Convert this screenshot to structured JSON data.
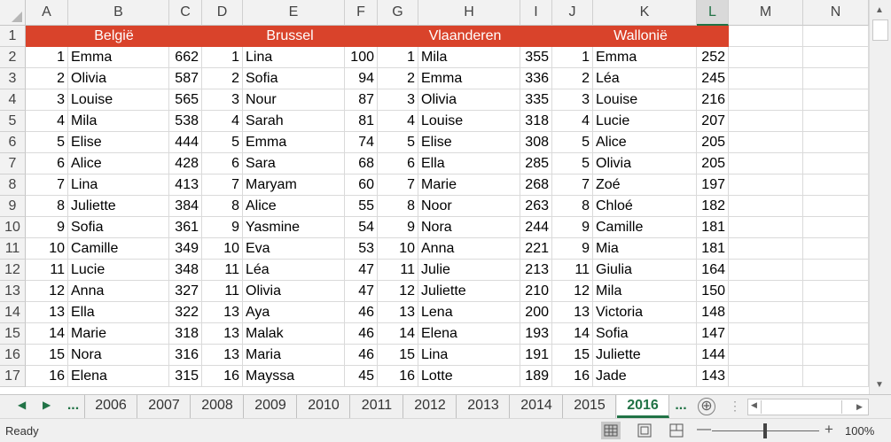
{
  "columns": [
    "A",
    "B",
    "C",
    "D",
    "E",
    "F",
    "G",
    "H",
    "I",
    "J",
    "K",
    "L",
    "M",
    "N"
  ],
  "selected_column": "L",
  "regions": [
    "België",
    "Brussel",
    "Vlaanderen",
    "Wallonië"
  ],
  "row_numbers": [
    "1",
    "2",
    "3",
    "4",
    "5",
    "6",
    "7",
    "8",
    "9",
    "10",
    "11",
    "12",
    "13",
    "14",
    "15",
    "16",
    "17"
  ],
  "rows": [
    [
      "1",
      "Emma",
      "662",
      "1",
      "Lina",
      "100",
      "1",
      "Mila",
      "355",
      "1",
      "Emma",
      "252"
    ],
    [
      "2",
      "Olivia",
      "587",
      "2",
      "Sofia",
      "94",
      "2",
      "Emma",
      "336",
      "2",
      "Léa",
      "245"
    ],
    [
      "3",
      "Louise",
      "565",
      "3",
      "Nour",
      "87",
      "3",
      "Olivia",
      "335",
      "3",
      "Louise",
      "216"
    ],
    [
      "4",
      "Mila",
      "538",
      "4",
      "Sarah",
      "81",
      "4",
      "Louise",
      "318",
      "4",
      "Lucie",
      "207"
    ],
    [
      "5",
      "Elise",
      "444",
      "5",
      "Emma",
      "74",
      "5",
      "Elise",
      "308",
      "5",
      "Alice",
      "205"
    ],
    [
      "6",
      "Alice",
      "428",
      "6",
      "Sara",
      "68",
      "6",
      "Ella",
      "285",
      "5",
      "Olivia",
      "205"
    ],
    [
      "7",
      "Lina",
      "413",
      "7",
      "Maryam",
      "60",
      "7",
      "Marie",
      "268",
      "7",
      "Zoé",
      "197"
    ],
    [
      "8",
      "Juliette",
      "384",
      "8",
      "Alice",
      "55",
      "8",
      "Noor",
      "263",
      "8",
      "Chloé",
      "182"
    ],
    [
      "9",
      "Sofia",
      "361",
      "9",
      "Yasmine",
      "54",
      "9",
      "Nora",
      "244",
      "9",
      "Camille",
      "181"
    ],
    [
      "10",
      "Camille",
      "349",
      "10",
      "Eva",
      "53",
      "10",
      "Anna",
      "221",
      "9",
      "Mia",
      "181"
    ],
    [
      "11",
      "Lucie",
      "348",
      "11",
      "Léa",
      "47",
      "11",
      "Julie",
      "213",
      "11",
      "Giulia",
      "164"
    ],
    [
      "12",
      "Anna",
      "327",
      "11",
      "Olivia",
      "47",
      "12",
      "Juliette",
      "210",
      "12",
      "Mila",
      "150"
    ],
    [
      "13",
      "Ella",
      "322",
      "13",
      "Aya",
      "46",
      "13",
      "Lena",
      "200",
      "13",
      "Victoria",
      "148"
    ],
    [
      "14",
      "Marie",
      "318",
      "13",
      "Malak",
      "46",
      "14",
      "Elena",
      "193",
      "14",
      "Sofia",
      "147"
    ],
    [
      "15",
      "Nora",
      "316",
      "13",
      "Maria",
      "46",
      "15",
      "Lina",
      "191",
      "15",
      "Juliette",
      "144"
    ],
    [
      "16",
      "Elena",
      "315",
      "16",
      "Mayssa",
      "45",
      "16",
      "Lotte",
      "189",
      "16",
      "Jade",
      "143"
    ]
  ],
  "sheet_tabs": [
    "2006",
    "2007",
    "2008",
    "2009",
    "2010",
    "2011",
    "2012",
    "2013",
    "2014",
    "2015",
    "2016"
  ],
  "active_sheet": "2016",
  "overflow_tabs": "...",
  "add_sheet": "⊕",
  "status": "Ready",
  "zoom": "100%",
  "colors": {
    "region_header": "#d9432b",
    "accent": "#217346"
  }
}
